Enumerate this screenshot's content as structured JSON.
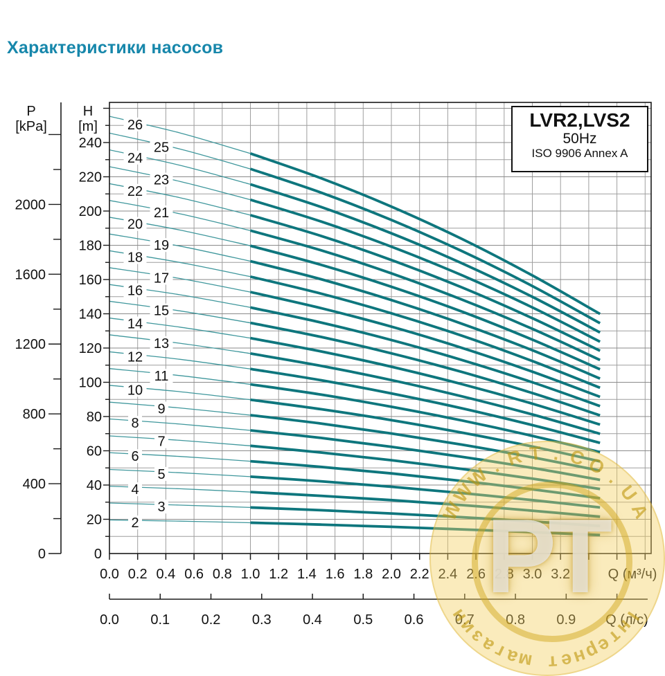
{
  "page": {
    "title": "Характеристики насосов",
    "title_color": "#1787ab"
  },
  "info_box": {
    "model": "LVR2,LVS2",
    "frequency": "50Hz",
    "standard": "ISO 9906 Annex A"
  },
  "axes": {
    "pressure": {
      "name": "P",
      "unit": "[kPa]",
      "labeled_ticks": [
        0,
        400,
        800,
        1200,
        1600,
        2000
      ],
      "minor_step_kpa": 200,
      "max_tick_kpa": 2400
    },
    "head": {
      "name": "H",
      "unit": "[m]",
      "labeled_ticks": [
        0,
        20,
        40,
        60,
        80,
        100,
        120,
        140,
        160,
        180,
        200,
        220,
        240
      ],
      "minor_step_m": 10,
      "max_grid_m": 260
    },
    "flow_m3h": {
      "name": "Q (м³/ч)",
      "labels": [
        "0.0",
        "0.2",
        "0.4",
        "0.6",
        "0.8",
        "1.0",
        "1.2",
        "1.4",
        "1.6",
        "1.8",
        "2.0",
        "2.2",
        "2.4",
        "2.6",
        "2.8",
        "3.0",
        "3.2"
      ],
      "tick_step": 0.2,
      "max_tick": 3.8
    },
    "flow_ls": {
      "name": "Q (л/с)",
      "labels": [
        "0.0",
        "0.1",
        "0.2",
        "0.3",
        "0.4",
        "0.5",
        "0.6",
        "0.7",
        "0.8",
        "0.9"
      ],
      "tick_step": 0.1,
      "max_tick": 1.0
    }
  },
  "chart_data": {
    "type": "line",
    "title": "LVR2,LVS2",
    "subtitle": "50Hz — ISO 9906 Annex A",
    "xlabel": "Q (м³/ч)",
    "x2label": "Q (л/с)",
    "ylabel": "H [m]",
    "y2label": "P [kPa]",
    "x_range_m3h": [
      0,
      3.84
    ],
    "y_range_m": [
      0,
      263
    ],
    "grid": {
      "x_step_m3h": 0.2,
      "y_step_m": 10,
      "on": true
    },
    "curve_style": {
      "thin_until_q": 1.0,
      "q_end": 3.48
    },
    "q_samples_m3h": [
      0,
      0.5,
      1.0,
      1.5,
      2.0,
      2.5,
      3.0,
      3.48
    ],
    "series": [
      {
        "label": "2",
        "stages": 2,
        "head_m": [
          19.6,
          18.9,
          18.0,
          16.9,
          15.6,
          14.1,
          12.5,
          10.8
        ]
      },
      {
        "label": "3",
        "stages": 3,
        "head_m": [
          29.5,
          28.3,
          26.9,
          25.3,
          23.4,
          21.2,
          18.7,
          16.1
        ]
      },
      {
        "label": "4",
        "stages": 4,
        "head_m": [
          39.3,
          37.8,
          35.9,
          33.7,
          31.2,
          28.3,
          25.0,
          21.5
        ]
      },
      {
        "label": "5",
        "stages": 5,
        "head_m": [
          49.1,
          47.2,
          44.9,
          42.2,
          39.0,
          35.3,
          31.2,
          26.9
        ]
      },
      {
        "label": "6",
        "stages": 6,
        "head_m": [
          58.9,
          56.7,
          53.9,
          50.6,
          46.8,
          42.4,
          37.5,
          32.3
        ]
      },
      {
        "label": "7",
        "stages": 7,
        "head_m": [
          68.7,
          66.1,
          62.9,
          59.0,
          54.5,
          49.4,
          43.7,
          37.7
        ]
      },
      {
        "label": "8",
        "stages": 8,
        "head_m": [
          78.6,
          75.6,
          71.9,
          67.5,
          62.3,
          56.5,
          50.0,
          43.0
        ]
      },
      {
        "label": "9",
        "stages": 9,
        "head_m": [
          88.4,
          85.0,
          80.8,
          75.9,
          70.1,
          63.6,
          56.2,
          48.4
        ]
      },
      {
        "label": "10",
        "stages": 10,
        "head_m": [
          98.2,
          94.5,
          89.8,
          84.3,
          77.9,
          70.6,
          62.5,
          53.8
        ]
      },
      {
        "label": "11",
        "stages": 11,
        "head_m": [
          108.0,
          103.9,
          98.8,
          92.8,
          85.7,
          77.7,
          68.7,
          59.2
        ]
      },
      {
        "label": "12",
        "stages": 12,
        "head_m": [
          117.8,
          113.4,
          107.8,
          101.2,
          93.5,
          84.8,
          75.0,
          64.6
        ]
      },
      {
        "label": "13",
        "stages": 13,
        "head_m": [
          127.7,
          122.8,
          116.8,
          109.6,
          101.3,
          91.8,
          81.2,
          69.9
        ]
      },
      {
        "label": "14",
        "stages": 14,
        "head_m": [
          137.5,
          132.2,
          125.8,
          118.0,
          109.1,
          98.9,
          87.5,
          75.3
        ]
      },
      {
        "label": "15",
        "stages": 15,
        "head_m": [
          147.3,
          141.7,
          134.7,
          126.5,
          116.9,
          106.0,
          93.7,
          80.7
        ]
      },
      {
        "label": "16",
        "stages": 16,
        "head_m": [
          157.1,
          151.1,
          143.7,
          134.9,
          124.7,
          113.0,
          100.0,
          86.1
        ]
      },
      {
        "label": "17",
        "stages": 17,
        "head_m": [
          166.9,
          160.6,
          152.7,
          143.3,
          132.5,
          120.1,
          106.2,
          91.5
        ]
      },
      {
        "label": "18",
        "stages": 18,
        "head_m": [
          176.8,
          170.0,
          161.7,
          151.8,
          140.3,
          127.2,
          112.4,
          96.8
        ]
      },
      {
        "label": "19",
        "stages": 19,
        "head_m": [
          186.6,
          179.5,
          170.7,
          160.2,
          148.0,
          134.2,
          118.7,
          102.2
        ]
      },
      {
        "label": "20",
        "stages": 20,
        "head_m": [
          196.4,
          188.9,
          179.7,
          168.6,
          155.8,
          141.3,
          124.9,
          107.6
        ]
      },
      {
        "label": "21",
        "stages": 21,
        "head_m": [
          206.2,
          198.4,
          188.6,
          177.1,
          163.6,
          148.3,
          131.2,
          113.0
        ]
      },
      {
        "label": "22",
        "stages": 22,
        "head_m": [
          216.0,
          207.8,
          197.6,
          185.5,
          171.4,
          155.4,
          137.4,
          118.4
        ]
      },
      {
        "label": "23",
        "stages": 23,
        "head_m": [
          225.9,
          217.3,
          206.6,
          193.9,
          179.2,
          162.5,
          143.7,
          123.7
        ]
      },
      {
        "label": "24",
        "stages": 24,
        "head_m": [
          235.7,
          226.7,
          215.6,
          202.4,
          187.0,
          169.5,
          149.9,
          129.1
        ]
      },
      {
        "label": "25",
        "stages": 25,
        "head_m": [
          245.5,
          236.2,
          224.6,
          210.8,
          194.8,
          176.6,
          156.2,
          134.5
        ]
      },
      {
        "label": "26",
        "stages": 26,
        "head_m": [
          255.3,
          245.6,
          233.6,
          219.2,
          202.6,
          183.7,
          162.4,
          139.9
        ]
      }
    ],
    "colors": {
      "curve_thick": "#0e767d",
      "curve_thin": "#3f979c",
      "grid_major": "#8a8a8a",
      "grid_minor": "#9e9e9e",
      "axis": "#1a1a1a",
      "text": "#111111"
    },
    "legend_position": "none"
  },
  "watermark": {
    "top_text": "WWW.RT.CO.UA",
    "center_text": "РТ",
    "bottom_text": "Інтернет магазин",
    "color": "#d9a400"
  }
}
